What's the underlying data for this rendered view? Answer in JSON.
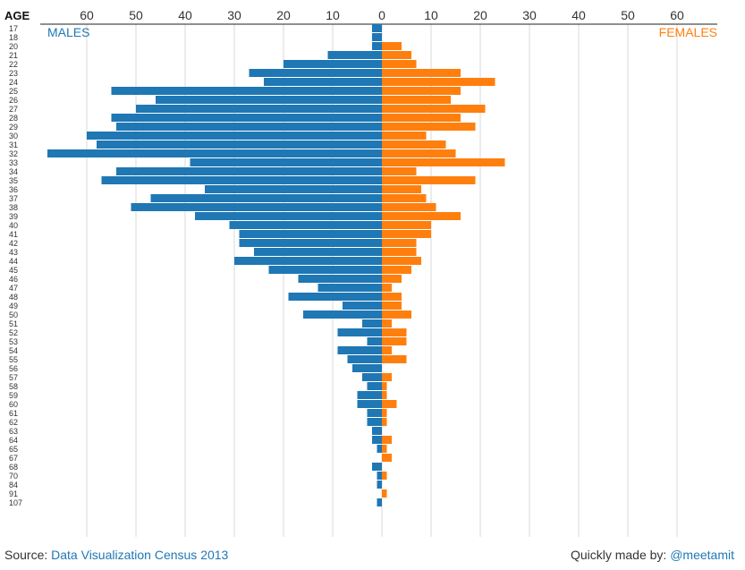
{
  "chart_data": {
    "type": "bar",
    "orientation": "horizontal",
    "layout": "population-pyramid",
    "y_axis_title": "AGE",
    "categories": [
      "17",
      "18",
      "20",
      "21",
      "22",
      "23",
      "24",
      "25",
      "26",
      "27",
      "28",
      "29",
      "30",
      "31",
      "32",
      "33",
      "34",
      "35",
      "36",
      "37",
      "38",
      "39",
      "40",
      "41",
      "42",
      "43",
      "44",
      "45",
      "46",
      "47",
      "48",
      "49",
      "50",
      "51",
      "52",
      "53",
      "54",
      "55",
      "56",
      "57",
      "58",
      "59",
      "60",
      "61",
      "62",
      "63",
      "64",
      "65",
      "67",
      "68",
      "70",
      "84",
      "91",
      "107"
    ],
    "series": [
      {
        "name": "MALES",
        "color": "#1f77b4",
        "side": "left",
        "values": [
          2,
          2,
          2,
          11,
          20,
          27,
          24,
          55,
          46,
          50,
          55,
          54,
          60,
          58,
          68,
          39,
          54,
          57,
          36,
          47,
          51,
          38,
          31,
          29,
          29,
          26,
          30,
          23,
          17,
          13,
          19,
          8,
          16,
          4,
          9,
          3,
          9,
          7,
          6,
          4,
          3,
          5,
          5,
          3,
          3,
          2,
          2,
          1,
          0,
          2,
          1,
          1,
          0,
          1
        ]
      },
      {
        "name": "FEMALES",
        "color": "#ff7f0e",
        "side": "right",
        "values": [
          0,
          0,
          4,
          6,
          7,
          16,
          23,
          16,
          14,
          21,
          16,
          19,
          9,
          13,
          15,
          25,
          7,
          19,
          8,
          9,
          11,
          16,
          10,
          10,
          7,
          7,
          8,
          6,
          4,
          2,
          4,
          4,
          6,
          2,
          5,
          5,
          2,
          5,
          0,
          2,
          1,
          1,
          3,
          1,
          1,
          0,
          2,
          1,
          2,
          0,
          1,
          0,
          1,
          0
        ]
      }
    ],
    "x_ticks": [
      "60",
      "50",
      "40",
      "30",
      "20",
      "10",
      "0",
      "10",
      "20",
      "30",
      "40",
      "50",
      "60"
    ],
    "xlim": [
      -68,
      68
    ],
    "grid": true,
    "legend_placement": "top-left / top-right"
  },
  "footer": {
    "source_label": "Source: ",
    "source_link": "Data Visualization Census 2013",
    "credit_label": "Quickly made by: ",
    "credit_link": "@meetamit"
  }
}
